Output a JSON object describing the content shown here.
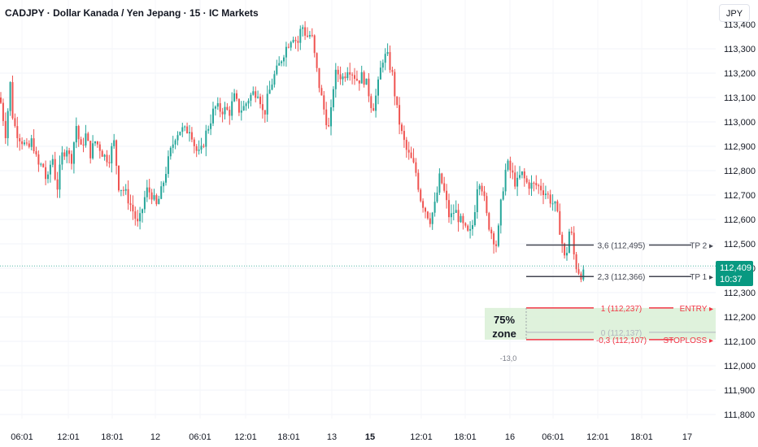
{
  "header": {
    "title": "CADJPY · Dollar Kanada / Yen Jepang · 15 · IC Markets",
    "currency": "JPY"
  },
  "last_price": {
    "value": "112,409",
    "countdown": "10:37"
  },
  "zone_label": {
    "line1": "75%",
    "line2": "zone"
  },
  "colors": {
    "up": "#26a69a",
    "down": "#ef5350",
    "last_price": "#089981",
    "entry_line": "#f23645",
    "tp_line": "#434651",
    "zone_fill": "#d9f0d6"
  },
  "chart_data": {
    "type": "candlestick",
    "title": "CADJPY · Dollar Kanada / Yen Jepang · 15 · IC Markets",
    "y_axis": {
      "range": [
        111.76,
        113.46
      ],
      "ticks": [
        "113,300",
        "113,200",
        "113,100",
        "113,000",
        "112,900",
        "112,800",
        "112,700",
        "112,600",
        "112,500",
        "112,400",
        "112,300",
        "112,200",
        "112,100",
        "112,000",
        "111,900",
        "111,800"
      ],
      "tick_values": [
        113.3,
        113.2,
        113.1,
        113.0,
        112.9,
        112.8,
        112.7,
        112.6,
        112.5,
        112.4,
        112.3,
        112.2,
        112.1,
        112.0,
        111.9,
        111.8
      ],
      "partial_top_tick": "113,400"
    },
    "x_axis": {
      "ticks": [
        "06:01",
        "12:01",
        "18:01",
        "12",
        "06:01",
        "12:01",
        "18:01",
        "13",
        "15",
        "12:01",
        "18:01",
        "16",
        "06:01",
        "12:01",
        "18:01",
        "17"
      ],
      "bold": [
        false,
        false,
        false,
        false,
        false,
        false,
        false,
        false,
        true,
        false,
        false,
        false,
        false,
        false,
        false,
        false
      ]
    },
    "price_path": [
      [
        0,
        113.1
      ],
      [
        7,
        112.95
      ],
      [
        13,
        113.17
      ],
      [
        16,
        113.0
      ],
      [
        22,
        112.95
      ],
      [
        28,
        112.92
      ],
      [
        34,
        112.88
      ],
      [
        40,
        112.93
      ],
      [
        46,
        112.82
      ],
      [
        53,
        112.82
      ],
      [
        58,
        112.74
      ],
      [
        64,
        112.87
      ],
      [
        70,
        112.72
      ],
      [
        76,
        112.86
      ],
      [
        82,
        112.9
      ],
      [
        87,
        112.83
      ],
      [
        94,
        112.99
      ],
      [
        99,
        112.88
      ],
      [
        105,
        112.95
      ],
      [
        111,
        112.87
      ],
      [
        117,
        112.92
      ],
      [
        122,
        112.9
      ],
      [
        128,
        112.86
      ],
      [
        134,
        112.85
      ],
      [
        140,
        112.92
      ],
      [
        146,
        112.74
      ],
      [
        152,
        112.72
      ],
      [
        157,
        112.69
      ],
      [
        164,
        112.63
      ],
      [
        170,
        112.57
      ],
      [
        174,
        112.63
      ],
      [
        180,
        112.72
      ],
      [
        186,
        112.71
      ],
      [
        192,
        112.65
      ],
      [
        198,
        112.71
      ],
      [
        204,
        112.8
      ],
      [
        210,
        112.88
      ],
      [
        216,
        112.95
      ],
      [
        222,
        112.97
      ],
      [
        228,
        112.96
      ],
      [
        234,
        112.98
      ],
      [
        240,
        112.89
      ],
      [
        246,
        112.86
      ],
      [
        252,
        112.94
      ],
      [
        258,
        113.0
      ],
      [
        264,
        113.06
      ],
      [
        270,
        113.05
      ],
      [
        276,
        113.05
      ],
      [
        282,
        113.04
      ],
      [
        288,
        113.1
      ],
      [
        294,
        113.05
      ],
      [
        300,
        113.06
      ],
      [
        306,
        113.1
      ],
      [
        312,
        113.12
      ],
      [
        318,
        113.13
      ],
      [
        324,
        113.02
      ],
      [
        330,
        113.11
      ],
      [
        336,
        113.18
      ],
      [
        342,
        113.22
      ],
      [
        348,
        113.28
      ],
      [
        354,
        113.32
      ],
      [
        360,
        113.36
      ],
      [
        366,
        113.32
      ],
      [
        371,
        113.4
      ],
      [
        377,
        113.35
      ],
      [
        383,
        113.36
      ],
      [
        388,
        113.24
      ],
      [
        394,
        113.12
      ],
      [
        399,
        113.04
      ],
      [
        405,
        112.96
      ],
      [
        411,
        113.19
      ],
      [
        416,
        113.2
      ],
      [
        422,
        113.18
      ],
      [
        428,
        113.23
      ],
      [
        434,
        113.2
      ],
      [
        440,
        113.17
      ],
      [
        446,
        113.19
      ],
      [
        452,
        113.14
      ],
      [
        458,
        113.05
      ],
      [
        464,
        113.13
      ],
      [
        470,
        113.26
      ],
      [
        476,
        113.27
      ],
      [
        482,
        113.2
      ],
      [
        488,
        113.05
      ],
      [
        494,
        112.95
      ],
      [
        500,
        112.88
      ],
      [
        506,
        112.84
      ],
      [
        511,
        112.8
      ],
      [
        517,
        112.69
      ],
      [
        523,
        112.64
      ],
      [
        529,
        112.6
      ],
      [
        535,
        112.66
      ],
      [
        541,
        112.78
      ],
      [
        547,
        112.7
      ],
      [
        553,
        112.6
      ],
      [
        559,
        112.64
      ],
      [
        565,
        112.6
      ],
      [
        571,
        112.56
      ],
      [
        577,
        112.53
      ],
      [
        582,
        112.59
      ],
      [
        588,
        112.78
      ],
      [
        593,
        112.73
      ],
      [
        599,
        112.6
      ],
      [
        605,
        112.54
      ],
      [
        611,
        112.49
      ],
      [
        617,
        112.7
      ],
      [
        623,
        112.83
      ],
      [
        629,
        112.79
      ],
      [
        635,
        112.74
      ],
      [
        641,
        112.79
      ],
      [
        647,
        112.75
      ],
      [
        653,
        112.74
      ],
      [
        659,
        112.74
      ],
      [
        665,
        112.73
      ],
      [
        671,
        112.71
      ],
      [
        677,
        112.68
      ],
      [
        683,
        112.65
      ],
      [
        689,
        112.55
      ],
      [
        695,
        112.42
      ],
      [
        701,
        112.58
      ],
      [
        707,
        112.42
      ],
      [
        713,
        112.38
      ],
      [
        718,
        112.37
      ]
    ],
    "levels": [
      {
        "label": "3,6 (112,495)",
        "value": 112.495,
        "tag": "TP 2",
        "color": "#434651"
      },
      {
        "label": "2,3 (112,366)",
        "value": 112.366,
        "tag": "TP 1",
        "color": "#434651"
      },
      {
        "label": "1 (112,237)",
        "value": 112.237,
        "tag": "ENTRY",
        "color": "#f23645"
      },
      {
        "label": "0 (112,137)",
        "value": 112.137,
        "tag": "",
        "color": "#b2b5be"
      },
      {
        "label": "-0,3 (112,107)",
        "value": 112.107,
        "tag": "STOPLOSS",
        "color": "#f23645"
      }
    ],
    "zone_range": [
      112.107,
      112.237
    ],
    "extra_label": "-13,0",
    "last_price_value": 112.409
  }
}
